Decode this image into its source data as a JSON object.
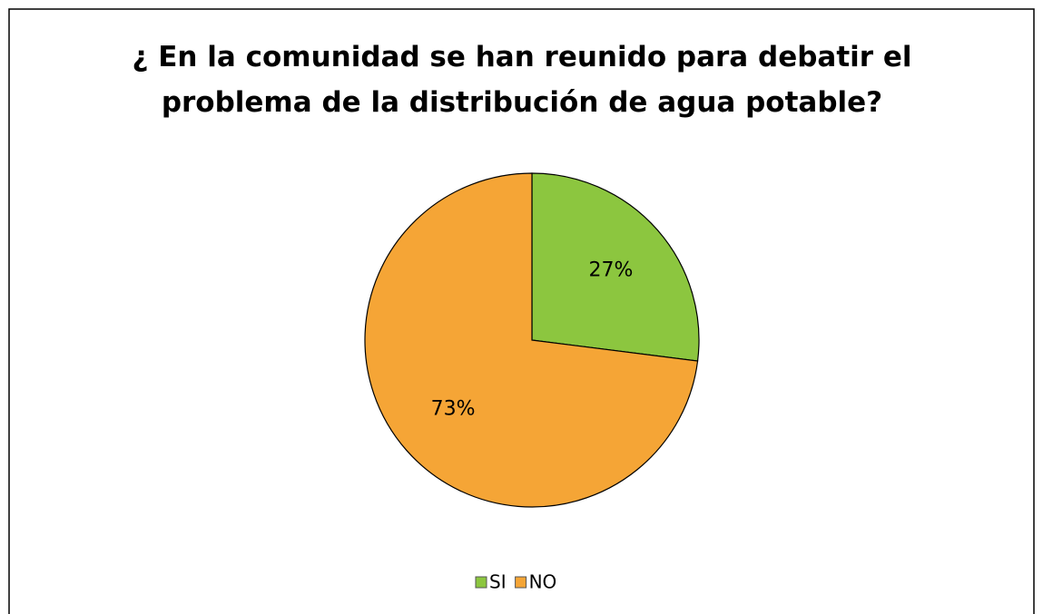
{
  "chart_data": {
    "type": "pie",
    "title": "¿ En la comunidad se han reunido para debatir el problema de la distribución de agua potable?",
    "categories": [
      "SI",
      "NO"
    ],
    "values": [
      27,
      73
    ],
    "value_labels": [
      "27%",
      "73%"
    ],
    "colors": [
      "#8cc63f",
      "#f5a536"
    ],
    "legend": "bottom"
  }
}
